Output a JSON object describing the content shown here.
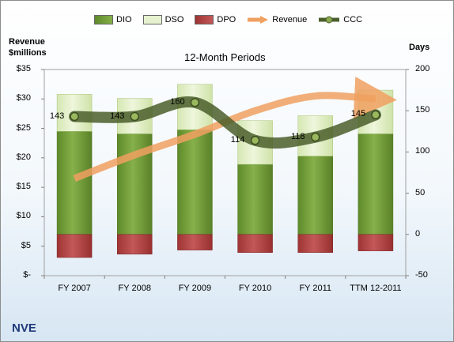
{
  "chart_data": {
    "type": "bar",
    "title": "12-Month Periods",
    "company": "NVE",
    "y_left_label": [
      "Revenue",
      "$millions"
    ],
    "y_right_label": "Days",
    "categories": [
      "FY 2007",
      "FY 2008",
      "FY 2009",
      "FY 2010",
      "FY 2011",
      "TTM 12-2011"
    ],
    "y_left_ticks": [
      "$35",
      "$30",
      "$25",
      "$20",
      "$15",
      "$10",
      "$5",
      "$-"
    ],
    "y_right_ticks": [
      "200",
      "150",
      "100",
      "50",
      "0",
      "-50"
    ],
    "ylim_left": [
      0,
      35
    ],
    "ylim_right": [
      -50,
      200
    ],
    "series": [
      {
        "name": "DIO",
        "values": [
          125,
          122,
          127,
          85,
          95,
          122
        ],
        "color": "#77a03a"
      },
      {
        "name": "DSO",
        "values": [
          45,
          43,
          55,
          53,
          49,
          53
        ],
        "color": "#e2efc8"
      },
      {
        "name": "DPO",
        "values": [
          -28,
          -24,
          -19,
          -22,
          -22,
          -20
        ],
        "color": "#b34a4a"
      },
      {
        "name": "Revenue",
        "values": [
          16.5,
          20.5,
          24,
          28,
          30.5,
          30
        ],
        "color": "#f0a060"
      },
      {
        "name": "CCC",
        "values": [
          143,
          143,
          160,
          114,
          118,
          145
        ],
        "color": "#4a5e2a"
      }
    ],
    "ccc_labels": [
      "143",
      "143",
      "160",
      "114",
      "118",
      "145"
    ]
  }
}
